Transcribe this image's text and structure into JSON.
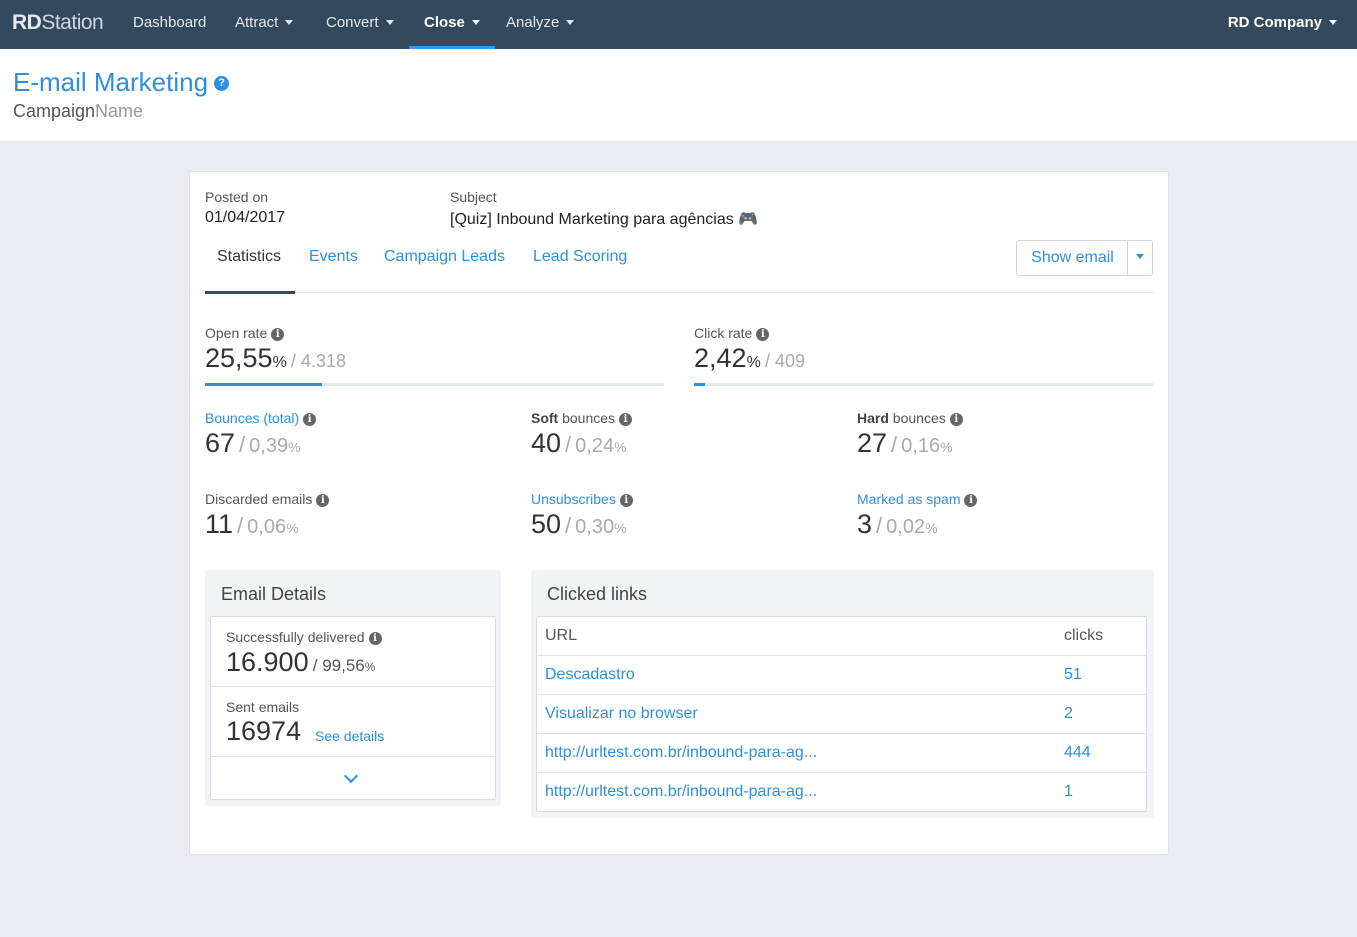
{
  "nav": {
    "logo_bold": "RD",
    "logo_rest": "Station",
    "items": [
      {
        "label": "Dashboard"
      },
      {
        "label": "Attract"
      },
      {
        "label": "Convert"
      },
      {
        "label": "Close"
      },
      {
        "label": "Analyze"
      }
    ],
    "active_item": "Close",
    "company": "RD Company"
  },
  "header": {
    "title": "E-mail Marketing",
    "help": "?",
    "campaign_main": "Campaign",
    "campaign_muted": "Name"
  },
  "meta": {
    "posted_label": "Posted on",
    "posted_value": "01/04/2017",
    "subject_label": "Subject",
    "subject_value": "[Quiz] Inbound Marketing para agências 🎮"
  },
  "tabs": [
    {
      "label": "Statistics"
    },
    {
      "label": "Events"
    },
    {
      "label": "Campaign Leads"
    },
    {
      "label": "Lead Scoring"
    }
  ],
  "show_email": {
    "label": "Show email"
  },
  "rates": {
    "open": {
      "label": "Open rate",
      "value": "25,55",
      "unit": "%",
      "rest": "/ 4.318",
      "progress": 0.2555
    },
    "click": {
      "label": "Click rate",
      "value": "2,42",
      "unit": "%",
      "rest": "/ 409",
      "progress": 0.0242
    }
  },
  "stats": {
    "bounces": {
      "label": "Bounces (total)",
      "value": "67",
      "pct": "0,39",
      "unit": "%"
    },
    "soft": {
      "label_bold": "Soft",
      "label_rest": " bounces",
      "value": "40",
      "pct": "0,24",
      "unit": "%"
    },
    "hard": {
      "label_bold": "Hard",
      "label_rest": " bounces",
      "value": "27",
      "pct": "0,16",
      "unit": "%"
    },
    "discarded": {
      "label": "Discarded emails",
      "value": "11",
      "pct": "0,06",
      "unit": "%"
    },
    "unsubscribes": {
      "label": "Unsubscribes",
      "value": "50",
      "pct": "0,30",
      "unit": "%"
    },
    "spam": {
      "label": "Marked as spam",
      "value": "3",
      "pct": "0,02",
      "unit": "%"
    }
  },
  "email_details": {
    "title": "Email Details",
    "delivered_label": "Successfully delivered",
    "delivered_value": "16.900",
    "delivered_rest": "/ 99,56",
    "delivered_unit": "%",
    "sent_label": "Sent emails",
    "sent_value": "16974",
    "see_details": "See details"
  },
  "clicked_links": {
    "title": "Clicked links",
    "col_url": "URL",
    "col_clicks": "clicks",
    "rows": [
      {
        "url": "Descadastro",
        "clicks": "51"
      },
      {
        "url": "Visualizar no browser",
        "clicks": "2"
      },
      {
        "url": "http://urltest.com.br/inbound-para-ag...",
        "clicks": "444"
      },
      {
        "url": "http://urltest.com.br/inbound-para-ag...",
        "clicks": "1"
      }
    ]
  },
  "colors": {
    "nav_bg": "#34495e",
    "accent": "#2d8fe0",
    "page_bg": "#e8ebf2"
  }
}
